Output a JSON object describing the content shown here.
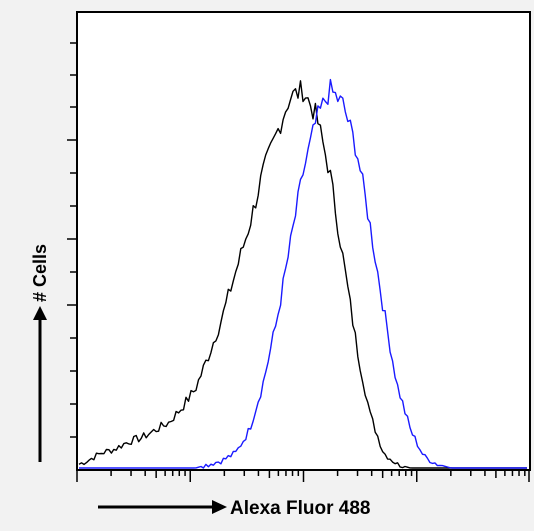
{
  "chart_data": {
    "type": "line",
    "xlabel": "Alexa Fluor 488",
    "ylabel": "# Cells",
    "x_scale": "log",
    "xlim": [
      0,
      1
    ],
    "ylim": [
      0,
      1
    ],
    "grid": false,
    "legend": "none",
    "series": [
      {
        "color": "#000000",
        "x": [
          0.0,
          0.02,
          0.05,
          0.08,
          0.11,
          0.14,
          0.17,
          0.2,
          0.23,
          0.26,
          0.29,
          0.32,
          0.35,
          0.38,
          0.41,
          0.44,
          0.47,
          0.5,
          0.53,
          0.56,
          0.59,
          0.62,
          0.65,
          0.68,
          0.71,
          0.74,
          0.77,
          0.8,
          0.83,
          0.86,
          0.89,
          0.92,
          0.95,
          0.98,
          1.0
        ],
        "y": [
          0.01,
          0.02,
          0.04,
          0.05,
          0.07,
          0.08,
          0.1,
          0.12,
          0.16,
          0.21,
          0.3,
          0.4,
          0.52,
          0.64,
          0.78,
          0.88,
          0.98,
          1.0,
          0.93,
          0.78,
          0.55,
          0.32,
          0.14,
          0.04,
          0.01,
          0.0,
          0.0,
          0.0,
          0.0,
          0.0,
          0.0,
          0.0,
          0.0,
          0.0,
          0.0
        ]
      },
      {
        "color": "#1a1aff",
        "x": [
          0.0,
          0.02,
          0.05,
          0.08,
          0.11,
          0.14,
          0.17,
          0.2,
          0.23,
          0.26,
          0.29,
          0.32,
          0.35,
          0.38,
          0.41,
          0.44,
          0.47,
          0.5,
          0.53,
          0.56,
          0.59,
          0.62,
          0.65,
          0.68,
          0.71,
          0.74,
          0.77,
          0.8,
          0.83,
          0.86,
          0.89,
          0.92,
          0.95,
          0.98,
          1.0
        ],
        "y": [
          0.0,
          0.0,
          0.0,
          0.0,
          0.0,
          0.0,
          0.0,
          0.0,
          0.0,
          0.0,
          0.01,
          0.02,
          0.04,
          0.1,
          0.22,
          0.38,
          0.58,
          0.78,
          0.92,
          1.0,
          0.96,
          0.84,
          0.64,
          0.42,
          0.22,
          0.1,
          0.03,
          0.01,
          0.0,
          0.0,
          0.0,
          0.0,
          0.0,
          0.0,
          0.0
        ]
      }
    ]
  }
}
